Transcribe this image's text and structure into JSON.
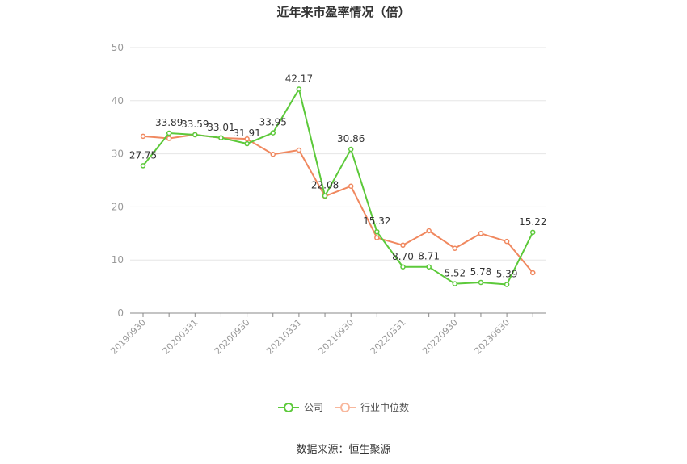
{
  "title": "近年来市盈率情况（倍）",
  "source": "数据来源：恒生聚源",
  "chart_data": {
    "type": "line",
    "title": "近年来市盈率情况（倍）",
    "xlabel": "",
    "ylabel": "",
    "ylim": [
      0,
      50
    ],
    "yticks": [
      0,
      10,
      20,
      30,
      40,
      50
    ],
    "grid": true,
    "legend_position": "bottom",
    "x_tick_labels": [
      "20190930",
      "20200331",
      "20200930",
      "20210331",
      "20210930",
      "20220331",
      "20220930",
      "20230630"
    ],
    "series": [
      {
        "name": "公司",
        "color": "#5cc93a",
        "values": [
          27.75,
          33.89,
          33.59,
          33.01,
          31.91,
          33.95,
          42.17,
          22.08,
          30.86,
          15.32,
          8.7,
          8.71,
          5.52,
          5.78,
          5.39,
          15.22
        ],
        "labels": [
          "27.75",
          "33.89",
          "33.59",
          "33.01",
          "31.91",
          "33.95",
          "42.17",
          "22.08",
          "30.86",
          "15.32",
          "8.70",
          "8.71",
          "5.52",
          "5.78",
          "5.39",
          "15.22"
        ]
      },
      {
        "name": "行业中位数",
        "color": "#f0885f",
        "values": [
          33.3,
          32.9,
          33.6,
          33.0,
          32.8,
          29.9,
          30.7,
          22.0,
          23.9,
          14.2,
          12.8,
          15.5,
          12.2,
          15.0,
          13.5,
          7.6
        ]
      }
    ]
  }
}
